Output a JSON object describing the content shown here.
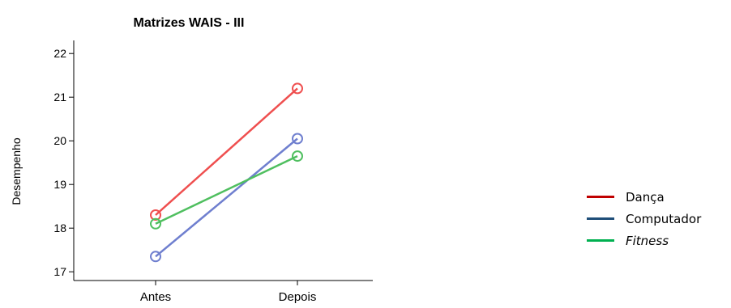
{
  "chart_data": {
    "type": "line",
    "title": "Matrizes WAIS - III",
    "xlabel": "",
    "ylabel": "Desempenho",
    "categories": [
      "Antes",
      "Depois"
    ],
    "ylim": [
      16.8,
      22.3
    ],
    "yticks": [
      17,
      18,
      19,
      20,
      21,
      22
    ],
    "grid": false,
    "legend_position": "right",
    "series": [
      {
        "name": "Dança",
        "values": [
          18.3,
          21.2
        ],
        "color": "#ef4f4f"
      },
      {
        "name": "Computador",
        "values": [
          17.35,
          20.05
        ],
        "color": "#6f7fcf"
      },
      {
        "name": "Fitness",
        "values": [
          18.1,
          19.65
        ],
        "color": "#4fbf5f"
      }
    ]
  },
  "legend": {
    "items": [
      {
        "label": "Dança",
        "color": "#c00000",
        "italic": false
      },
      {
        "label": "Computador",
        "color": "#1f4e79",
        "italic": false
      },
      {
        "label": "Fitness",
        "color": "#00b050",
        "italic": true
      }
    ]
  }
}
